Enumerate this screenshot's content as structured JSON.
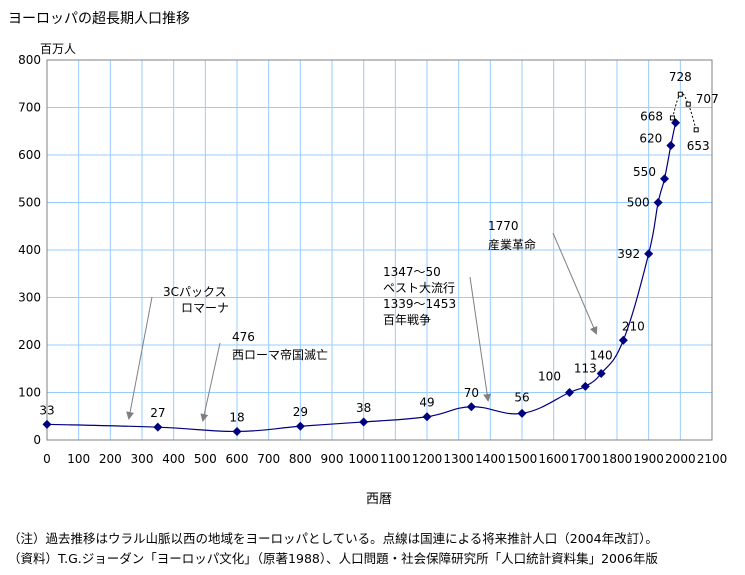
{
  "title": "ヨーロッパの超長期人口推移",
  "chart_data": {
    "type": "line",
    "title": "ヨーロッパの超長期人口推移",
    "ylabel": "百万人",
    "xlabel": "西暦",
    "xlim": [
      0,
      2100
    ],
    "ylim": [
      0,
      800
    ],
    "xticks": [
      0,
      100,
      200,
      300,
      400,
      500,
      600,
      700,
      800,
      900,
      1000,
      1100,
      1200,
      1300,
      1400,
      1500,
      1600,
      1700,
      1800,
      1900,
      2000,
      2100
    ],
    "yticks": [
      0,
      100,
      200,
      300,
      400,
      500,
      600,
      700,
      800
    ],
    "grid": true,
    "series": [
      {
        "style": "solid",
        "color": "#000080",
        "x": [
          0,
          350,
          600,
          800,
          1000,
          1200,
          1340,
          1500,
          1650,
          1700,
          1750,
          1820,
          1900,
          1930,
          1950,
          1970,
          1985
        ],
        "values": [
          33,
          27,
          18,
          29,
          38,
          49,
          70,
          56,
          100,
          113,
          140,
          210,
          392,
          500,
          550,
          620,
          668
        ],
        "labels": [
          "33",
          "27",
          "18",
          "29",
          "38",
          "49",
          "70",
          "56",
          "100",
          "113",
          "140",
          "210",
          "392",
          "500",
          "550",
          "620",
          "668"
        ]
      },
      {
        "style": "dashed",
        "color": "#000000",
        "x": [
          1975,
          2000,
          2025,
          2050
        ],
        "values": [
          678,
          728,
          707,
          653
        ],
        "labels": [
          "",
          "728",
          "707",
          "653"
        ]
      }
    ],
    "annotations": [
      {
        "lines": [
          "3Cパックス",
          "ロマーナ"
        ]
      },
      {
        "lines": [
          "476",
          "西ローマ帝国滅亡"
        ]
      },
      {
        "lines": [
          "1347～50",
          "ペスト大流行",
          "1339～1453",
          "百年戦争"
        ]
      },
      {
        "lines": [
          "1770",
          "産業革命"
        ]
      }
    ]
  },
  "notes": [
    "（注）過去推移はウラル山脈以西の地域をヨーロッパとしている。点線は国連による将来推計人口（2004年改訂）。",
    "（資料）T.G.ジョーダン「ヨーロッパ文化」（原著1988）、人口問題・社会保障研究所「人口統計資料集」2006年版"
  ]
}
